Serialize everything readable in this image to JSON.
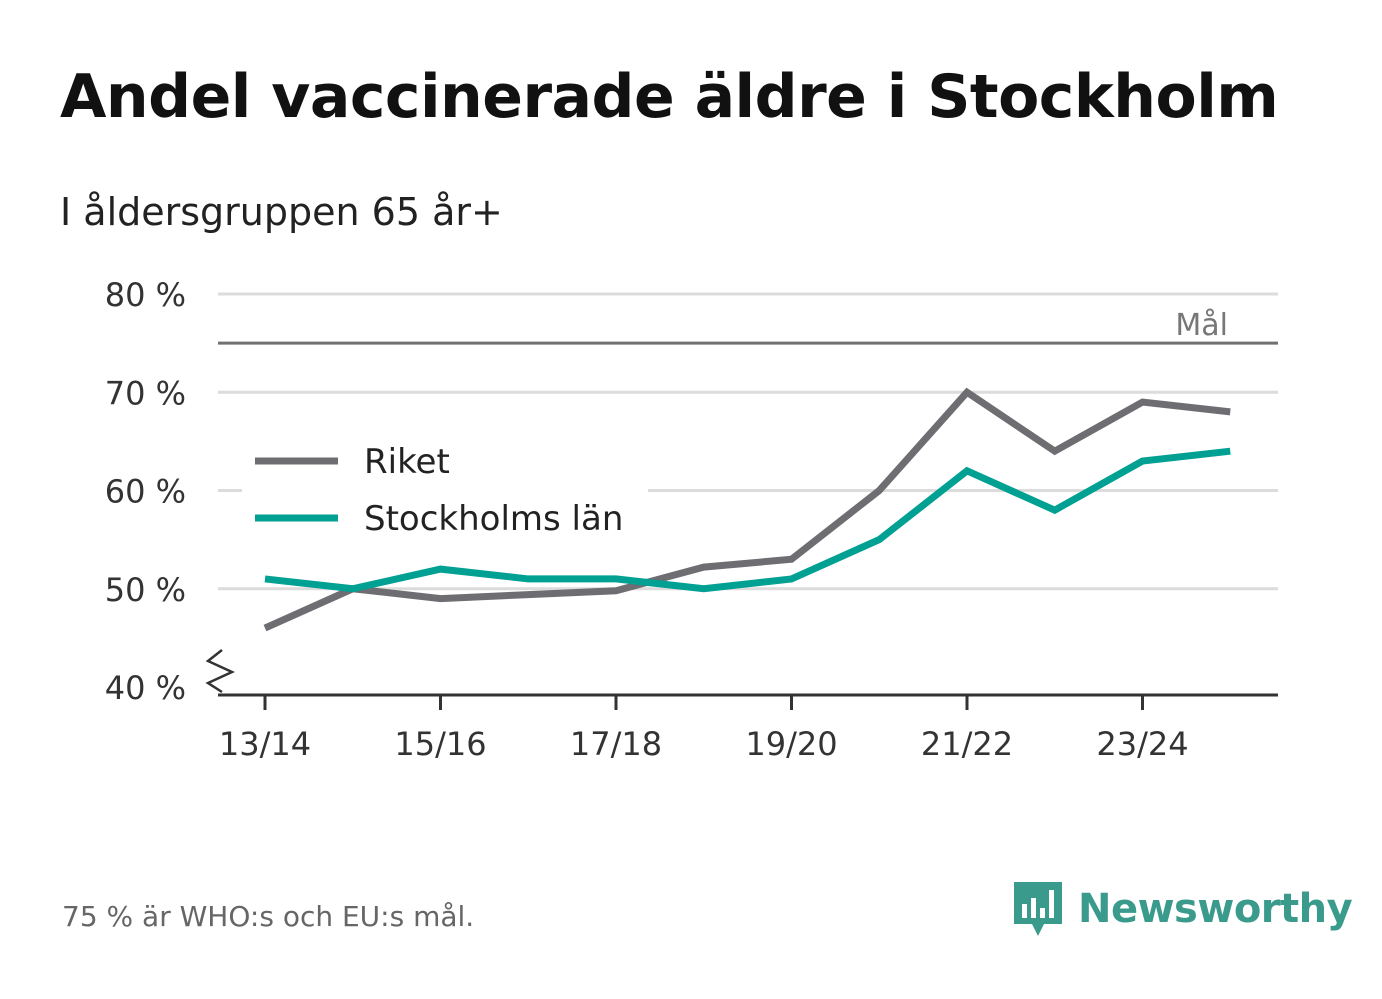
{
  "title": "Andel vaccinerade äldre i Stockholm",
  "subtitle": "I åldersgruppen 65 år+",
  "footnote": "75 % är WHO:s och EU:s mål.",
  "brand": {
    "name": "Newsworthy",
    "icon": "newsworthy-logo-icon",
    "color": "#3a9a8c"
  },
  "chart_data": {
    "type": "line",
    "x": [
      "13/14",
      "14/15",
      "15/16",
      "16/17",
      "17/18",
      "18/19",
      "19/20",
      "20/21",
      "21/22",
      "22/23",
      "23/24",
      "24/25"
    ],
    "x_tick_labels": [
      "13/14",
      "15/16",
      "17/18",
      "19/20",
      "21/22",
      "23/24"
    ],
    "series": [
      {
        "name": "Riket",
        "color": "#6e6d72",
        "values": [
          46,
          50,
          49,
          49.4,
          49.8,
          52.2,
          53,
          60,
          70,
          64,
          69,
          68
        ]
      },
      {
        "name": "Stockholms län",
        "color": "#00a093",
        "values": [
          51,
          50,
          52,
          51,
          51,
          50,
          51,
          55,
          62,
          58,
          63,
          64
        ]
      }
    ],
    "ylim": [
      40,
      80
    ],
    "y_ticks": [
      40,
      50,
      60,
      70,
      80
    ],
    "y_tick_labels": [
      "40 %",
      "50 %",
      "60 %",
      "70 %",
      "80 %"
    ],
    "reference_line": {
      "value": 75,
      "label": "Mål",
      "color": "#707070"
    },
    "grid": true,
    "axis_break": true,
    "legend_position": "left"
  }
}
